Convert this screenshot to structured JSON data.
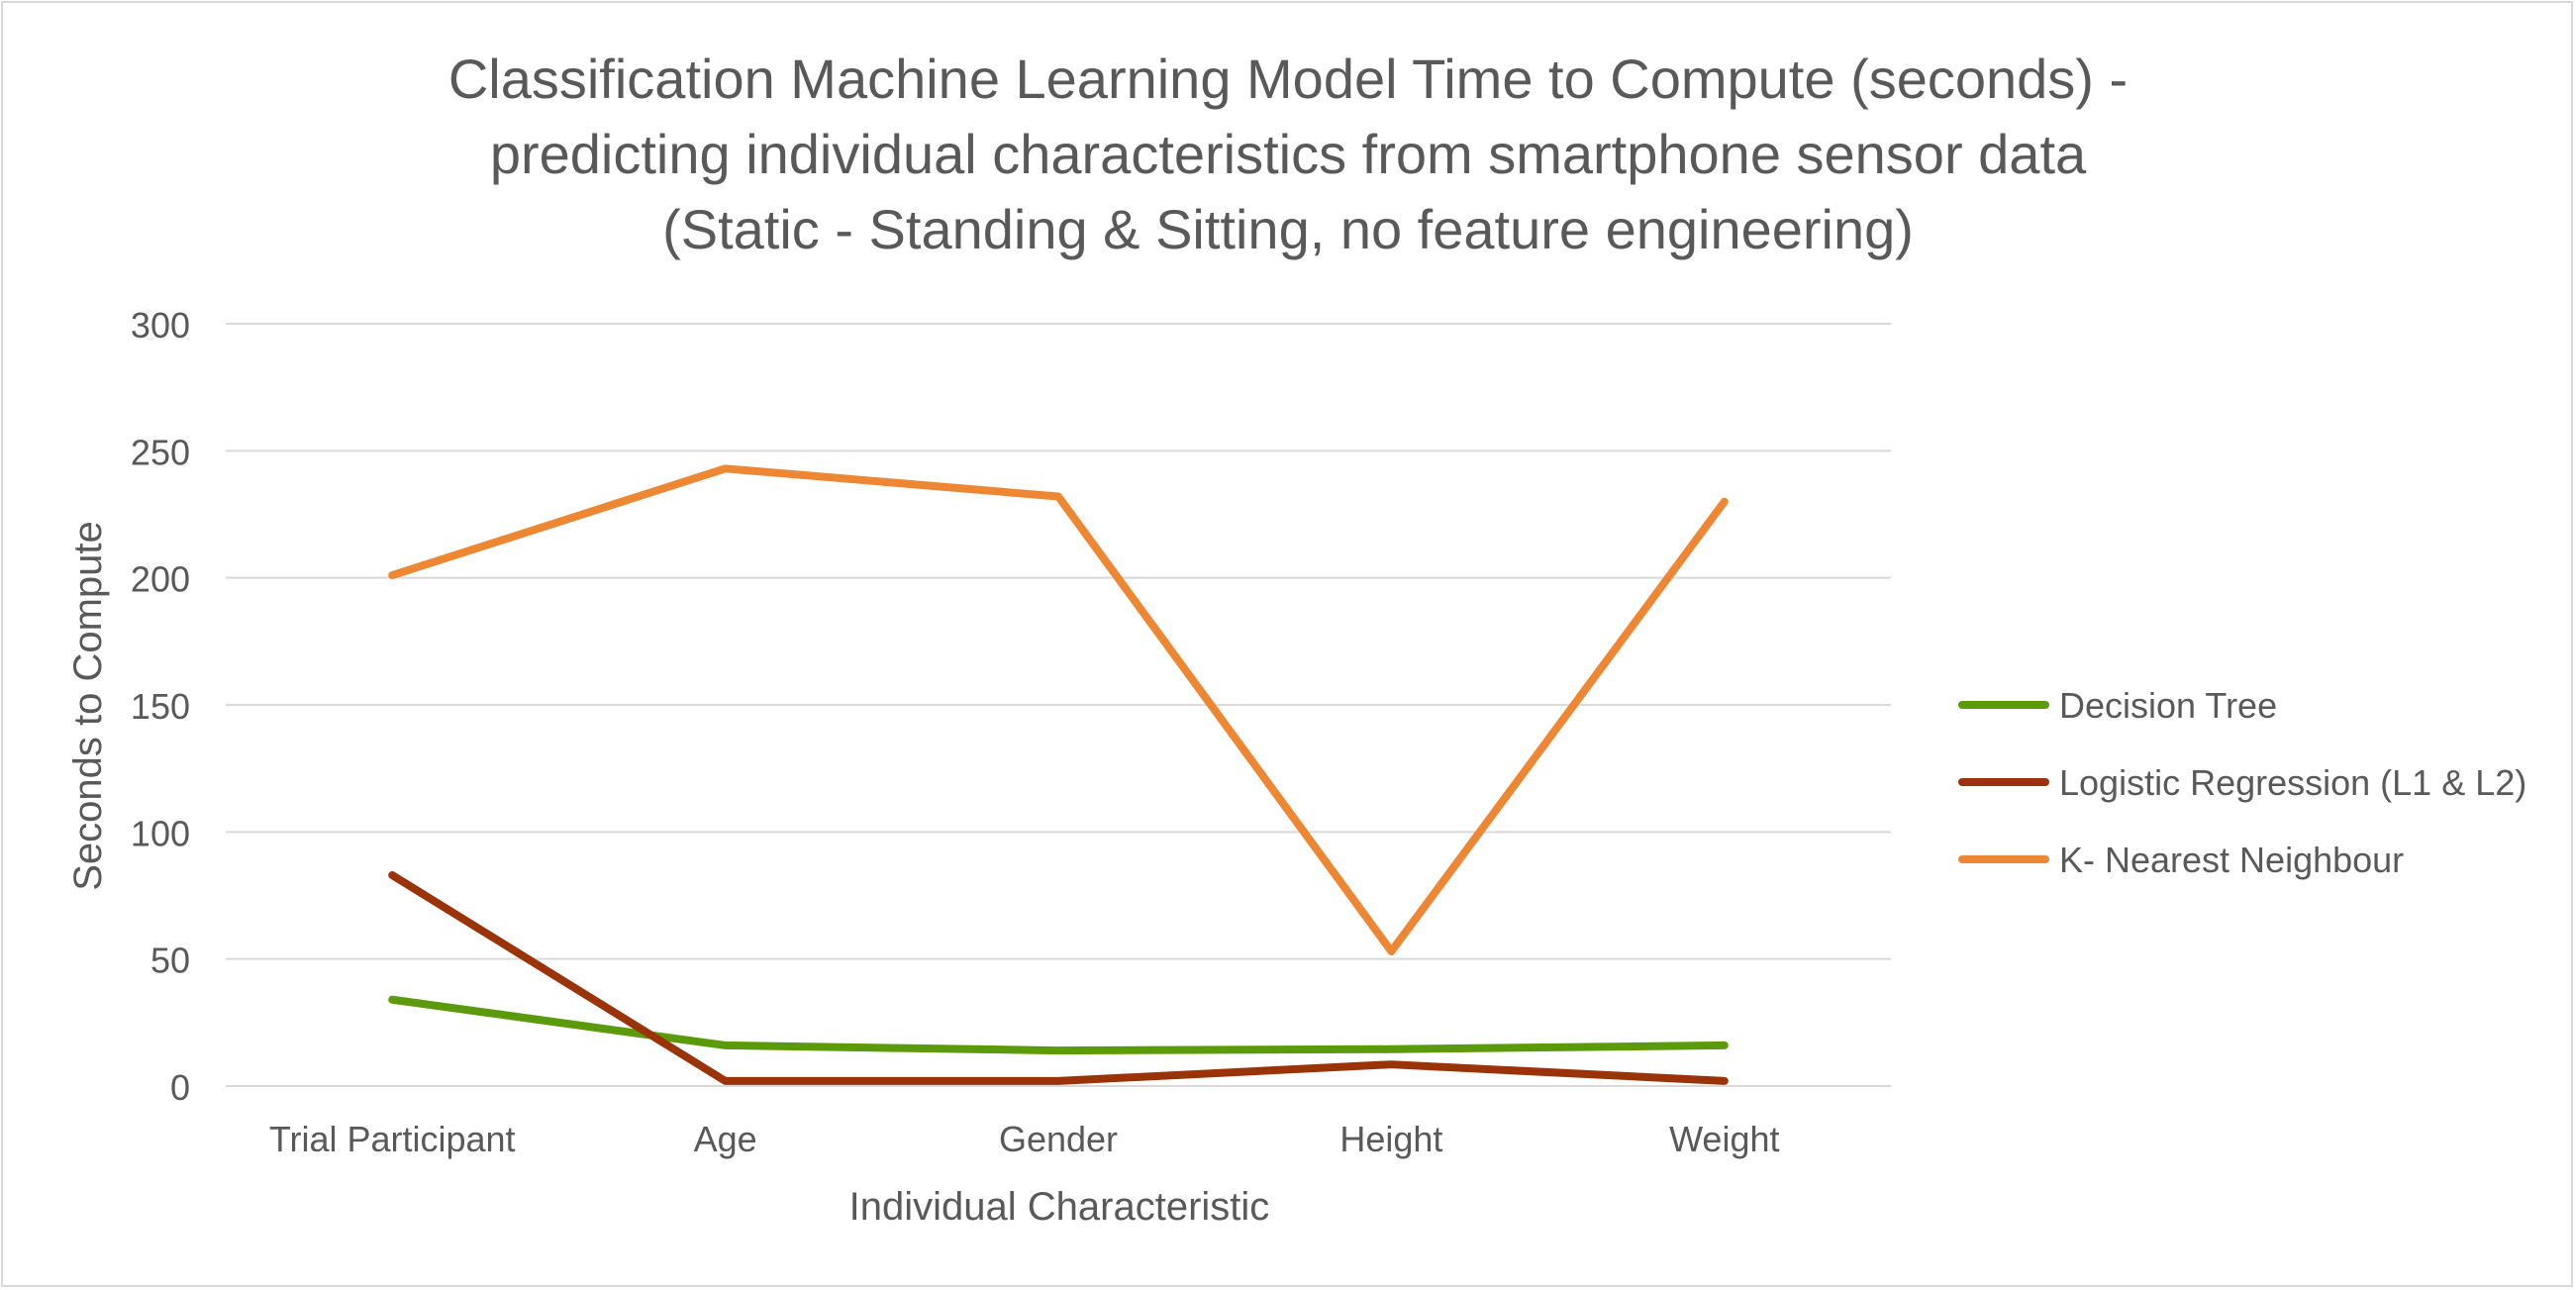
{
  "chart_data": {
    "type": "line",
    "title_lines": [
      "Classification Machine Learning Model Time to Compute (seconds) -",
      "predicting individual characteristics from smartphone sensor data",
      "(Static - Standing & Sitting, no feature engineering)"
    ],
    "xlabel": "Individual Characteristic",
    "ylabel": "Seconds to Compute",
    "categories": [
      "Trial Participant",
      "Age",
      "Gender",
      "Height",
      "Weight"
    ],
    "ylim": [
      0,
      300
    ],
    "yticks": [
      "0",
      "50",
      "100",
      "150",
      "200",
      "250",
      "300"
    ],
    "grid": true,
    "legend_position": "right",
    "series": [
      {
        "name": "Decision Tree",
        "color": "#5b9a0a",
        "values": [
          34,
          16,
          14,
          14.5,
          16
        ]
      },
      {
        "name": "Logistic Regression (L1 & L2)",
        "color": "#9a3408",
        "values": [
          83,
          2,
          2,
          8.5,
          2
        ]
      },
      {
        "name": "K- Nearest Neighbour",
        "color": "#ed8734",
        "values": [
          201,
          243,
          232,
          53,
          230
        ]
      }
    ]
  }
}
